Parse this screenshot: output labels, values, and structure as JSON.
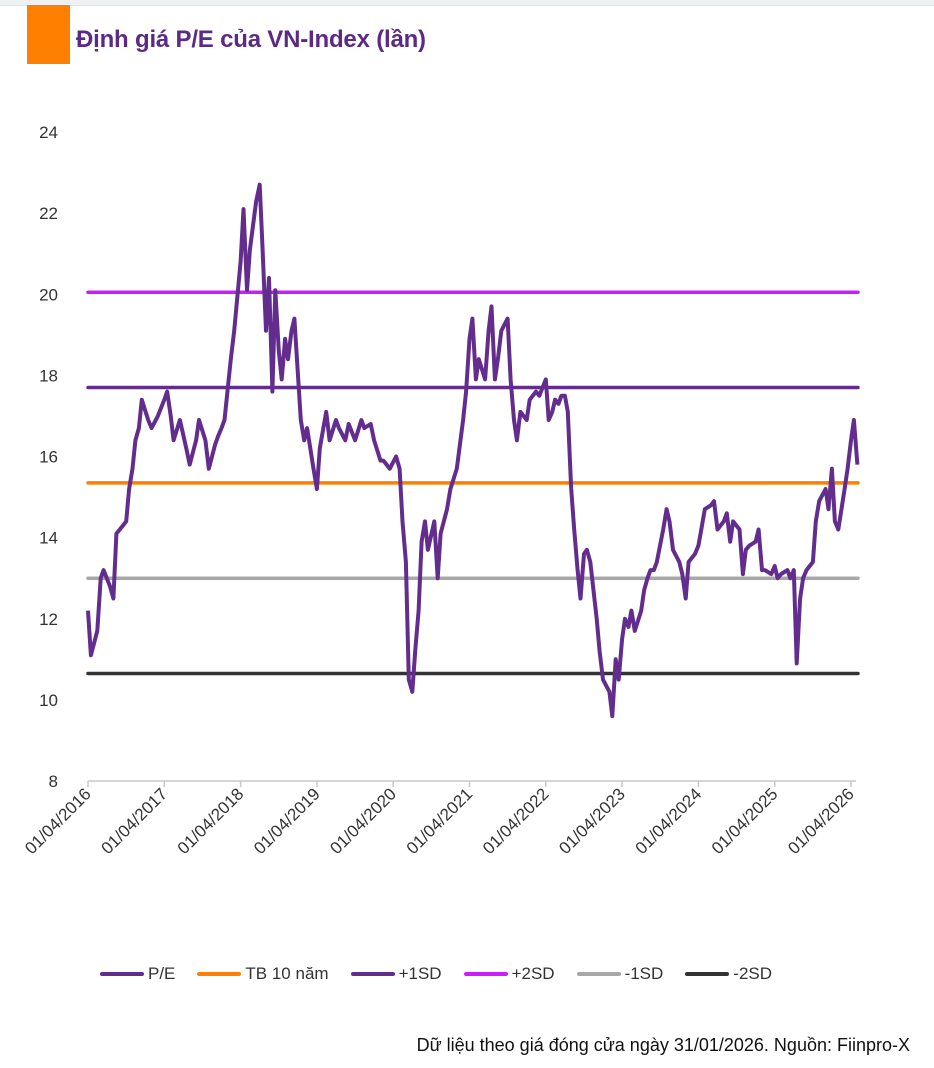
{
  "title": "Định giá P/E của VN-Index (lần)",
  "footer": "Dữ liệu theo giá đóng cửa ngày 31/01/2026. Nguồn: Fiinpro-X",
  "colors": {
    "accent": "#ff7f00",
    "title": "#5b2a86"
  },
  "chart_data": {
    "type": "line",
    "title": "Định giá P/E của VN-Index (lần)",
    "ylim": [
      8,
      24
    ],
    "yticks": [
      "8",
      "10",
      "12",
      "14",
      "16",
      "18",
      "20",
      "22",
      "24"
    ],
    "xticks": [
      "01/04/2016",
      "01/04/2017",
      "01/04/2018",
      "01/04/2019",
      "01/04/2020",
      "01/04/2021",
      "01/04/2022",
      "01/04/2023",
      "01/04/2024",
      "01/04/2025",
      "01/04/2026"
    ],
    "grid": false,
    "legend_position": "bottom",
    "legend": [
      "P/E",
      "TB 10 năm",
      "+1SD",
      "+2SD",
      "-1SD",
      "-2SD"
    ],
    "levels": [
      {
        "name": "TB 10 năm",
        "value": 15.35,
        "color": "#ff7f00"
      },
      {
        "name": "+1SD",
        "value": 17.7,
        "color": "#632d8e"
      },
      {
        "name": "+2SD",
        "value": 20.05,
        "color": "#cc1bff"
      },
      {
        "name": "-1SD",
        "value": 13.0,
        "color": "#a8a8a8"
      },
      {
        "name": "-2SD",
        "value": 10.65,
        "color": "#333333"
      }
    ],
    "series": [
      {
        "name": "P/E",
        "color": "#632d8e",
        "points": [
          [
            "2016-04-01",
            12.2
          ],
          [
            "2016-04-15",
            11.1
          ],
          [
            "2016-05-15",
            11.7
          ],
          [
            "2016-06-01",
            13.0
          ],
          [
            "2016-06-15",
            13.2
          ],
          [
            "2016-07-15",
            12.8
          ],
          [
            "2016-08-01",
            12.5
          ],
          [
            "2016-08-15",
            14.1
          ],
          [
            "2016-09-01",
            14.2
          ],
          [
            "2016-10-01",
            14.4
          ],
          [
            "2016-10-15",
            15.2
          ],
          [
            "2016-11-01",
            15.7
          ],
          [
            "2016-11-15",
            16.4
          ],
          [
            "2016-12-01",
            16.7
          ],
          [
            "2016-12-15",
            17.4
          ],
          [
            "2017-01-15",
            16.9
          ],
          [
            "2017-02-01",
            16.7
          ],
          [
            "2017-03-01",
            17.0
          ],
          [
            "2017-04-01",
            17.4
          ],
          [
            "2017-04-15",
            17.6
          ],
          [
            "2017-05-01",
            17.0
          ],
          [
            "2017-05-15",
            16.4
          ],
          [
            "2017-06-15",
            16.9
          ],
          [
            "2017-07-15",
            16.2
          ],
          [
            "2017-08-01",
            15.8
          ],
          [
            "2017-09-01",
            16.4
          ],
          [
            "2017-09-15",
            16.9
          ],
          [
            "2017-10-15",
            16.4
          ],
          [
            "2017-11-01",
            15.7
          ],
          [
            "2017-12-01",
            16.3
          ],
          [
            "2017-12-15",
            16.5
          ],
          [
            "2018-01-01",
            16.7
          ],
          [
            "2018-01-15",
            16.9
          ],
          [
            "2018-02-15",
            18.4
          ],
          [
            "2018-03-01",
            19.1
          ],
          [
            "2018-04-01",
            20.8
          ],
          [
            "2018-04-15",
            22.1
          ],
          [
            "2018-05-01",
            20.1
          ],
          [
            "2018-05-15",
            21.1
          ],
          [
            "2018-06-15",
            22.3
          ],
          [
            "2018-07-01",
            22.7
          ],
          [
            "2018-07-15",
            21.1
          ],
          [
            "2018-08-01",
            19.1
          ],
          [
            "2018-08-15",
            20.4
          ],
          [
            "2018-09-01",
            17.6
          ],
          [
            "2018-09-15",
            20.1
          ],
          [
            "2018-10-01",
            18.6
          ],
          [
            "2018-10-15",
            17.9
          ],
          [
            "2018-11-01",
            18.9
          ],
          [
            "2018-11-15",
            18.4
          ],
          [
            "2018-12-01",
            19.1
          ],
          [
            "2018-12-15",
            19.4
          ],
          [
            "2019-01-15",
            16.9
          ],
          [
            "2019-02-01",
            16.4
          ],
          [
            "2019-02-15",
            16.7
          ],
          [
            "2019-03-15",
            15.7
          ],
          [
            "2019-04-01",
            15.2
          ],
          [
            "2019-04-15",
            16.2
          ],
          [
            "2019-05-15",
            17.1
          ],
          [
            "2019-06-01",
            16.4
          ],
          [
            "2019-07-01",
            16.9
          ],
          [
            "2019-07-15",
            16.7
          ],
          [
            "2019-08-15",
            16.4
          ],
          [
            "2019-09-01",
            16.8
          ],
          [
            "2019-10-01",
            16.4
          ],
          [
            "2019-11-01",
            16.9
          ],
          [
            "2019-11-15",
            16.7
          ],
          [
            "2019-12-15",
            16.8
          ],
          [
            "2020-01-01",
            16.4
          ],
          [
            "2020-02-01",
            15.9
          ],
          [
            "2020-02-15",
            15.9
          ],
          [
            "2020-03-15",
            15.7
          ],
          [
            "2020-04-15",
            16.0
          ],
          [
            "2020-05-01",
            15.7
          ],
          [
            "2020-05-15",
            14.4
          ],
          [
            "2020-06-01",
            13.4
          ],
          [
            "2020-06-15",
            10.5
          ],
          [
            "2020-07-01",
            10.2
          ],
          [
            "2020-07-15",
            11.2
          ],
          [
            "2020-08-01",
            12.2
          ],
          [
            "2020-08-15",
            13.9
          ],
          [
            "2020-09-01",
            14.4
          ],
          [
            "2020-09-15",
            13.7
          ],
          [
            "2020-10-15",
            14.4
          ],
          [
            "2020-11-01",
            13.0
          ],
          [
            "2020-11-15",
            14.1
          ],
          [
            "2020-12-15",
            14.7
          ],
          [
            "2021-01-01",
            15.2
          ],
          [
            "2021-02-01",
            15.7
          ],
          [
            "2021-03-01",
            16.9
          ],
          [
            "2021-03-15",
            17.6
          ],
          [
            "2021-04-01",
            18.9
          ],
          [
            "2021-04-15",
            19.4
          ],
          [
            "2021-05-01",
            17.9
          ],
          [
            "2021-05-15",
            18.4
          ],
          [
            "2021-06-15",
            17.9
          ],
          [
            "2021-07-01",
            19.1
          ],
          [
            "2021-07-15",
            19.7
          ],
          [
            "2021-08-01",
            17.9
          ],
          [
            "2021-08-15",
            18.4
          ],
          [
            "2021-09-01",
            19.1
          ],
          [
            "2021-10-01",
            19.4
          ],
          [
            "2021-10-15",
            17.9
          ],
          [
            "2021-11-01",
            16.9
          ],
          [
            "2021-11-15",
            16.4
          ],
          [
            "2021-12-01",
            17.1
          ],
          [
            "2022-01-01",
            16.9
          ],
          [
            "2022-01-15",
            17.4
          ],
          [
            "2022-02-15",
            17.6
          ],
          [
            "2022-03-01",
            17.5
          ],
          [
            "2022-04-01",
            17.9
          ],
          [
            "2022-04-15",
            16.9
          ],
          [
            "2022-05-01",
            17.1
          ],
          [
            "2022-05-15",
            17.4
          ],
          [
            "2022-06-01",
            17.3
          ],
          [
            "2022-06-15",
            17.5
          ],
          [
            "2022-07-01",
            17.5
          ],
          [
            "2022-07-15",
            17.1
          ],
          [
            "2022-08-01",
            15.2
          ],
          [
            "2022-08-15",
            14.2
          ],
          [
            "2022-09-01",
            13.2
          ],
          [
            "2022-09-15",
            12.5
          ],
          [
            "2022-10-01",
            13.6
          ],
          [
            "2022-10-15",
            13.7
          ],
          [
            "2022-11-01",
            13.4
          ],
          [
            "2022-12-01",
            12.0
          ],
          [
            "2022-12-15",
            11.2
          ],
          [
            "2023-01-01",
            10.5
          ],
          [
            "2023-02-01",
            10.2
          ],
          [
            "2023-02-15",
            9.6
          ],
          [
            "2023-03-01",
            11.0
          ],
          [
            "2023-03-15",
            10.5
          ],
          [
            "2023-04-01",
            11.5
          ],
          [
            "2023-04-15",
            12.0
          ],
          [
            "2023-05-01",
            11.8
          ],
          [
            "2023-05-15",
            12.2
          ],
          [
            "2023-06-01",
            11.7
          ],
          [
            "2023-07-01",
            12.2
          ],
          [
            "2023-07-15",
            12.7
          ],
          [
            "2023-08-01",
            13.0
          ],
          [
            "2023-08-15",
            13.2
          ],
          [
            "2023-09-01",
            13.2
          ],
          [
            "2023-09-15",
            13.4
          ],
          [
            "2023-10-15",
            14.2
          ],
          [
            "2023-11-01",
            14.7
          ],
          [
            "2023-11-15",
            14.4
          ],
          [
            "2023-12-01",
            13.7
          ],
          [
            "2024-01-01",
            13.4
          ],
          [
            "2024-01-15",
            13.1
          ],
          [
            "2024-02-01",
            12.5
          ],
          [
            "2024-02-15",
            13.4
          ],
          [
            "2024-03-15",
            13.6
          ],
          [
            "2024-04-01",
            13.8
          ],
          [
            "2024-04-15",
            14.2
          ],
          [
            "2024-05-01",
            14.7
          ],
          [
            "2024-06-01",
            14.8
          ],
          [
            "2024-06-15",
            14.9
          ],
          [
            "2024-07-01",
            14.2
          ],
          [
            "2024-08-01",
            14.4
          ],
          [
            "2024-08-15",
            14.6
          ],
          [
            "2024-09-01",
            13.9
          ],
          [
            "2024-09-15",
            14.4
          ],
          [
            "2024-10-15",
            14.2
          ],
          [
            "2024-11-01",
            13.1
          ],
          [
            "2024-11-15",
            13.7
          ],
          [
            "2024-12-01",
            13.8
          ],
          [
            "2025-01-01",
            13.9
          ],
          [
            "2025-01-15",
            14.2
          ],
          [
            "2025-02-01",
            13.2
          ],
          [
            "2025-02-15",
            13.2
          ],
          [
            "2025-03-15",
            13.1
          ],
          [
            "2025-04-01",
            13.3
          ],
          [
            "2025-04-15",
            13.0
          ],
          [
            "2025-05-01",
            13.1
          ],
          [
            "2025-06-01",
            13.2
          ],
          [
            "2025-06-15",
            13.0
          ],
          [
            "2025-07-01",
            13.2
          ],
          [
            "2025-07-15",
            10.9
          ],
          [
            "2025-08-01",
            12.5
          ],
          [
            "2025-08-15",
            13.0
          ],
          [
            "2025-09-01",
            13.2
          ],
          [
            "2025-10-01",
            13.4
          ],
          [
            "2025-10-15",
            14.4
          ],
          [
            "2025-11-01",
            14.9
          ],
          [
            "2025-12-01",
            15.2
          ],
          [
            "2025-12-15",
            14.7
          ],
          [
            "2026-01-01",
            15.7
          ],
          [
            "2026-01-15",
            14.4
          ],
          [
            "2026-02-01",
            14.2
          ],
          [
            "2026-03-01",
            15.2
          ],
          [
            "2026-03-15",
            15.7
          ],
          [
            "2026-04-01",
            16.4
          ],
          [
            "2026-04-15",
            16.9
          ],
          [
            "2026-05-01",
            15.8
          ]
        ]
      }
    ]
  }
}
